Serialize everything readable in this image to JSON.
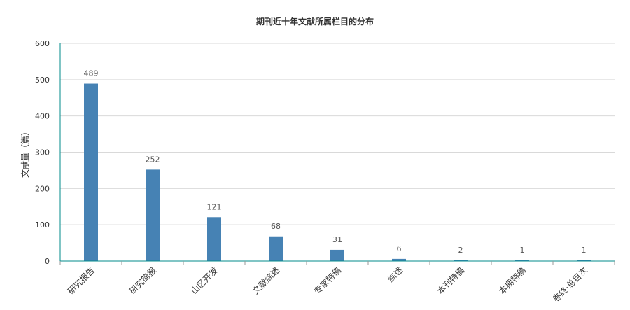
{
  "chart_data": {
    "type": "bar",
    "title": "期刊近十年文献所属栏目的分布",
    "xlabel": "",
    "ylabel": "文献量（篇）",
    "ylim": [
      0,
      600
    ],
    "yticks": [
      0,
      100,
      200,
      300,
      400,
      500,
      600
    ],
    "categories": [
      "研究报告",
      "研究简报",
      "山区开发",
      "文献综述",
      "专家特稿",
      "综述",
      "本刊特稿",
      "本期特稿",
      "卷终·总目次"
    ],
    "values": [
      489,
      252,
      121,
      68,
      31,
      6,
      2,
      1,
      1
    ],
    "grid": true,
    "legend": "none",
    "colors": {
      "bar": "#4682b4",
      "axis": "#008b8b",
      "grid": "#d9d9d9",
      "text": "#333333",
      "label": "#555555"
    }
  }
}
